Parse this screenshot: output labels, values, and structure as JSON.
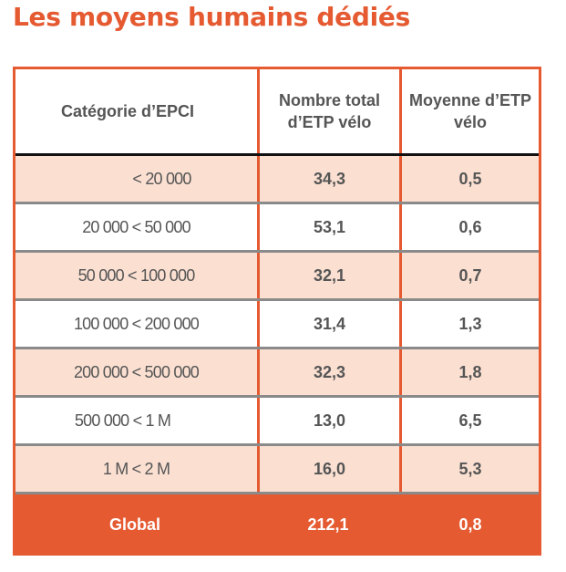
{
  "title": "Les moyens humains dédiés",
  "table": {
    "headers": [
      "Catégorie d’EPCI",
      "Nombre total d’ETP vélo",
      "Moyenne d’ETP vélo"
    ],
    "rows": [
      {
        "category": "< 20 000",
        "total": "34,3",
        "average": "0,5"
      },
      {
        "category": "20 000 < 50 000",
        "total": "53,1",
        "average": "0,6"
      },
      {
        "category": "50 000 < 100 000",
        "total": "32,1",
        "average": "0,7"
      },
      {
        "category": "100 000 < 200 000",
        "total": "31,4",
        "average": "1,3"
      },
      {
        "category": "200 000 < 500 000",
        "total": "32,3",
        "average": "1,8"
      },
      {
        "category": "500 000 < 1 M",
        "total": "13,0",
        "average": "6,5"
      },
      {
        "category": "1 M < 2 M",
        "total": "16,0",
        "average": "5,3"
      }
    ],
    "global": {
      "label": "Global",
      "total": "212,1",
      "average": "0,8"
    }
  },
  "colors": {
    "accent": "#e55a31",
    "row_shade": "#fbe0d2"
  }
}
